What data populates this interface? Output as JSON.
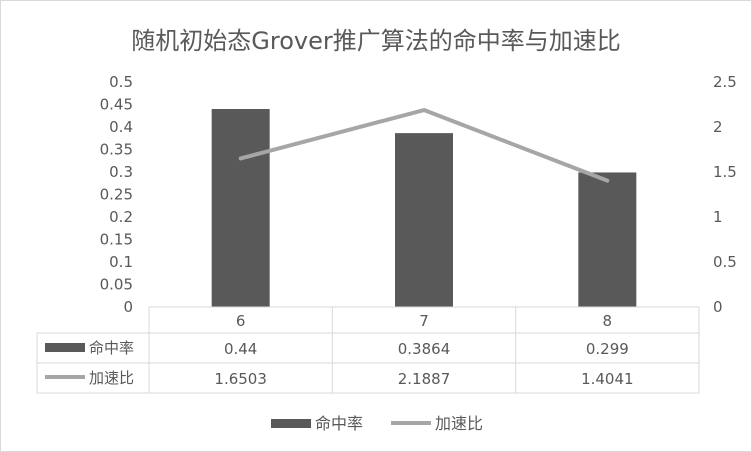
{
  "chart_data": {
    "type": "bar",
    "title": "随机初始态Grover推广算法的命中率与加速比",
    "categories": [
      "6",
      "7",
      "8"
    ],
    "series": [
      {
        "name": "命中率",
        "type": "bar",
        "axis": "left",
        "values": [
          0.44,
          0.3864,
          0.299
        ],
        "display": [
          "0.44",
          "0.3864",
          "0.299"
        ],
        "color": "#595959"
      },
      {
        "name": "加速比",
        "type": "line",
        "axis": "right",
        "values": [
          1.6503,
          2.1887,
          1.4041
        ],
        "display": [
          "1.6503",
          "2.1887",
          "1.4041"
        ],
        "color": "#a6a6a6"
      }
    ],
    "ylim_left": [
      0,
      0.5
    ],
    "yticks_left": [
      "0",
      "0.05",
      "0.1",
      "0.15",
      "0.2",
      "0.25",
      "0.3",
      "0.35",
      "0.4",
      "0.45",
      "0.5"
    ],
    "ylim_right": [
      0,
      2.5
    ],
    "yticks_right": [
      "0",
      "0.5",
      "1",
      "1.5",
      "2",
      "2.5"
    ],
    "grid": false,
    "data_table": true,
    "legend": "bottom"
  }
}
